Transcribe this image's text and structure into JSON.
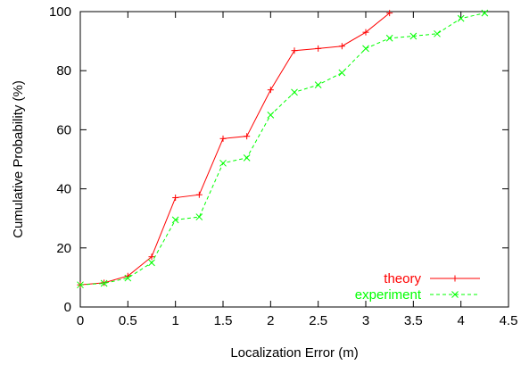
{
  "chart_data": {
    "type": "line",
    "title": "",
    "xlabel": "Localization Error (m)",
    "ylabel": "Cumulative Probability (%)",
    "xlim": [
      0,
      4.5
    ],
    "ylim": [
      0,
      100
    ],
    "xticks": [
      "0",
      "0.5",
      "1",
      "1.5",
      "2",
      "2.5",
      "3",
      "3.5",
      "4",
      "4.5"
    ],
    "yticks": [
      "0",
      "20",
      "40",
      "60",
      "80",
      "100"
    ],
    "grid": false,
    "legend_position": "bottom-right",
    "series": [
      {
        "name": "theory",
        "color": "#ff0000",
        "line_style": "solid",
        "marker": "plus",
        "x": [
          0,
          0.25,
          0.5,
          0.75,
          1.0,
          1.25,
          1.5,
          1.75,
          2.0,
          2.25,
          2.5,
          2.75,
          3.0,
          3.25
        ],
        "y": [
          7.5,
          8.2,
          10.5,
          17.0,
          37.0,
          38.0,
          57.0,
          57.8,
          73.5,
          86.8,
          87.5,
          88.3,
          93.0,
          99.5
        ]
      },
      {
        "name": "experiment",
        "color": "#00ff00",
        "line_style": "dashed",
        "marker": "cross",
        "x": [
          0,
          0.25,
          0.5,
          0.75,
          1.0,
          1.25,
          1.5,
          1.75,
          2.0,
          2.25,
          2.5,
          2.75,
          3.0,
          3.25,
          3.5,
          3.75,
          4.0,
          4.25
        ],
        "y": [
          7.5,
          8.0,
          9.8,
          15.0,
          29.5,
          30.5,
          48.7,
          50.5,
          65.0,
          72.7,
          75.2,
          79.3,
          87.5,
          91.0,
          91.7,
          92.5,
          97.7,
          99.5
        ]
      }
    ]
  }
}
